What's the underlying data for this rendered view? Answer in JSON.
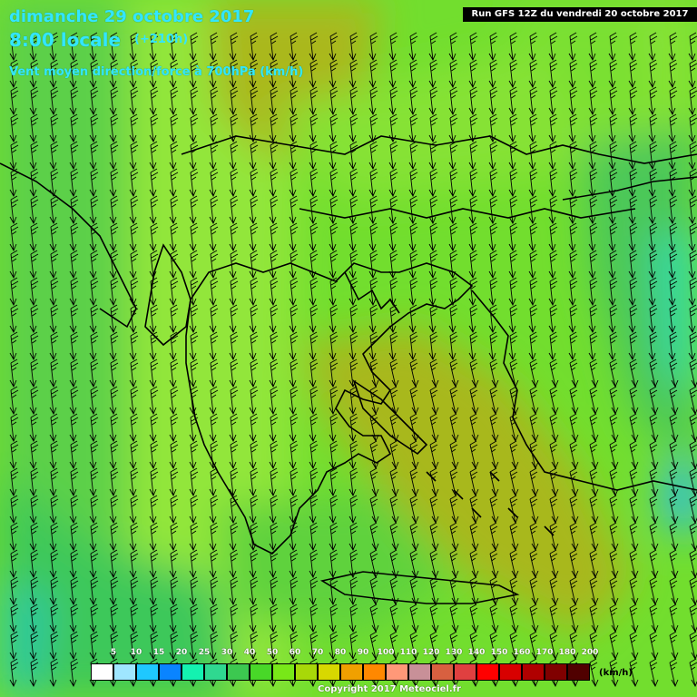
{
  "header": {
    "date": "dimanche 29 octobre 2017",
    "time": "8:00 locale",
    "lead": "(+210h)",
    "variable": "Vent moyen direction/force à 700hPa (km/h)",
    "run": "Run GFS 12Z du vendredi 20 octobre 2017"
  },
  "legend": {
    "ticks": [
      "5",
      "10",
      "15",
      "20",
      "25",
      "30",
      "40",
      "50",
      "60",
      "70",
      "80",
      "90",
      "100",
      "110",
      "120",
      "130",
      "140",
      "150",
      "160",
      "170",
      "180",
      "200"
    ],
    "colors": [
      "#ffffff",
      "#9fe6ff",
      "#1fc8ff",
      "#0a84ff",
      "#14f2b0",
      "#2fd890",
      "#3cc850",
      "#48d828",
      "#78e818",
      "#a8d808",
      "#d8d800",
      "#f0a000",
      "#ff8800",
      "#ff9878",
      "#c89098",
      "#d86040",
      "#e04040",
      "#ff0000",
      "#d80000",
      "#b00000",
      "#800000",
      "#500000"
    ],
    "unit": "(km/h)"
  },
  "copyright": "Copyright 2017 Meteociel.fr",
  "palette": {
    "field_light": "#a6ec3a",
    "field_mid": "#6fe22c",
    "field_dark": "#4cc84a",
    "olive": "#a9b51a",
    "cyan": "#2fd8a8",
    "blue": "#20a8ff"
  }
}
